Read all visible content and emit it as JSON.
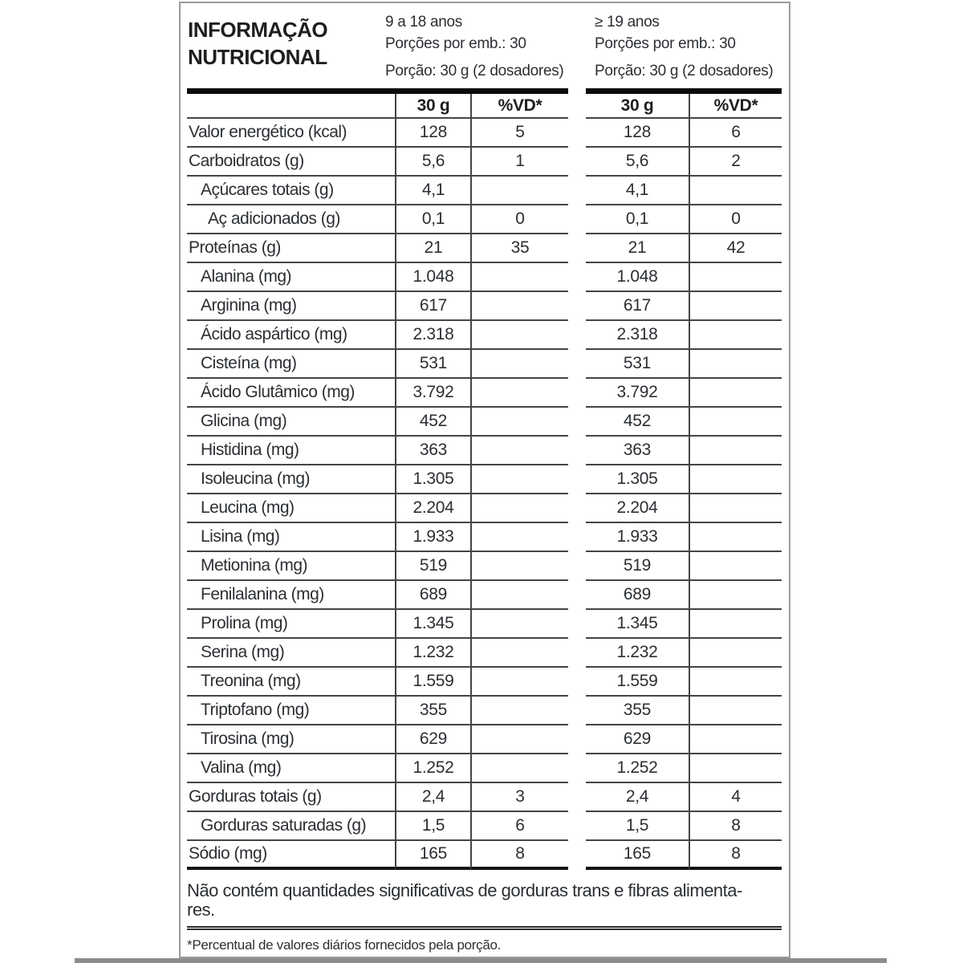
{
  "header": {
    "title_line1": "INFORMAÇÃO",
    "title_line2": "NUTRICIONAL",
    "groups": [
      {
        "age_range": "9 a 18 anos",
        "servings_per_pack": "Porções por emb.: 30",
        "serving_size": "Porção: 30 g (2 dosadores)"
      },
      {
        "age_range": "≥ 19 anos",
        "servings_per_pack": "Porções por emb.: 30",
        "serving_size": "Porção: 30 g (2 dosadores)"
      }
    ]
  },
  "table": {
    "column_headers": {
      "amount": "30 g",
      "dv": "%VD*"
    },
    "rows": [
      {
        "label": "Valor energético (kcal)",
        "indent": 0,
        "v1": "128",
        "dv1": "5",
        "v2": "128",
        "dv2": "6"
      },
      {
        "label": "Carboidratos (g)",
        "indent": 0,
        "v1": "5,6",
        "dv1": "1",
        "v2": "5,6",
        "dv2": "2"
      },
      {
        "label": "Açúcares totais (g)",
        "indent": 1,
        "v1": "4,1",
        "dv1": "",
        "v2": "4,1",
        "dv2": ""
      },
      {
        "label": "Aç adicionados (g)",
        "indent": 2,
        "v1": "0,1",
        "dv1": "0",
        "v2": "0,1",
        "dv2": "0"
      },
      {
        "label": "Proteínas (g)",
        "indent": 0,
        "v1": "21",
        "dv1": "35",
        "v2": "21",
        "dv2": "42"
      },
      {
        "label": "Alanina (mg)",
        "indent": 1,
        "v1": "1.048",
        "dv1": "",
        "v2": "1.048",
        "dv2": ""
      },
      {
        "label": "Arginina (mg)",
        "indent": 1,
        "v1": "617",
        "dv1": "",
        "v2": "617",
        "dv2": ""
      },
      {
        "label": "Ácido aspártico (mg)",
        "indent": 1,
        "v1": "2.318",
        "dv1": "",
        "v2": "2.318",
        "dv2": ""
      },
      {
        "label": "Cisteína (mg)",
        "indent": 1,
        "v1": "531",
        "dv1": "",
        "v2": "531",
        "dv2": ""
      },
      {
        "label": "Ácido Glutâmico (mg)",
        "indent": 1,
        "v1": "3.792",
        "dv1": "",
        "v2": "3.792",
        "dv2": ""
      },
      {
        "label": "Glicina (mg)",
        "indent": 1,
        "v1": "452",
        "dv1": "",
        "v2": "452",
        "dv2": ""
      },
      {
        "label": "Histidina (mg)",
        "indent": 1,
        "v1": "363",
        "dv1": "",
        "v2": "363",
        "dv2": ""
      },
      {
        "label": "Isoleucina (mg)",
        "indent": 1,
        "v1": "1.305",
        "dv1": "",
        "v2": "1.305",
        "dv2": ""
      },
      {
        "label": "Leucina (mg)",
        "indent": 1,
        "v1": "2.204",
        "dv1": "",
        "v2": "2.204",
        "dv2": ""
      },
      {
        "label": "Lisina (mg)",
        "indent": 1,
        "v1": "1.933",
        "dv1": "",
        "v2": "1.933",
        "dv2": ""
      },
      {
        "label": "Metionina (mg)",
        "indent": 1,
        "v1": "519",
        "dv1": "",
        "v2": "519",
        "dv2": ""
      },
      {
        "label": "Fenilalanina (mg)",
        "indent": 1,
        "v1": "689",
        "dv1": "",
        "v2": "689",
        "dv2": ""
      },
      {
        "label": "Prolina (mg)",
        "indent": 1,
        "v1": "1.345",
        "dv1": "",
        "v2": "1.345",
        "dv2": ""
      },
      {
        "label": "Serina (mg)",
        "indent": 1,
        "v1": "1.232",
        "dv1": "",
        "v2": "1.232",
        "dv2": ""
      },
      {
        "label": "Treonina (mg)",
        "indent": 1,
        "v1": "1.559",
        "dv1": "",
        "v2": "1.559",
        "dv2": ""
      },
      {
        "label": "Triptofano (mg)",
        "indent": 1,
        "v1": "355",
        "dv1": "",
        "v2": "355",
        "dv2": ""
      },
      {
        "label": "Tirosina (mg)",
        "indent": 1,
        "v1": "629",
        "dv1": "",
        "v2": "629",
        "dv2": ""
      },
      {
        "label": "Valina (mg)",
        "indent": 1,
        "v1": "1.252",
        "dv1": "",
        "v2": "1.252",
        "dv2": ""
      },
      {
        "label": "Gorduras totais (g)",
        "indent": 0,
        "v1": "2,4",
        "dv1": "3",
        "v2": "2,4",
        "dv2": "4"
      },
      {
        "label": "Gorduras saturadas (g)",
        "indent": 1,
        "v1": "1,5",
        "dv1": "6",
        "v2": "1,5",
        "dv2": "8"
      },
      {
        "label": "Sódio (mg)",
        "indent": 0,
        "v1": "165",
        "dv1": "8",
        "v2": "165",
        "dv2": "8"
      }
    ]
  },
  "footer": {
    "note_line1": "Não contém quantidades significativas de gorduras trans e fibras alimenta-",
    "note_line2": "res.",
    "dv_note": "*Percentual de valores diários fornecidos pela porção."
  },
  "colors": {
    "text": "#2b2f33",
    "heavy_bar": "#0a0a0a",
    "rule": "#454545",
    "box_border": "#9b9b9b",
    "bottom_strip": "#8d8d8d"
  }
}
